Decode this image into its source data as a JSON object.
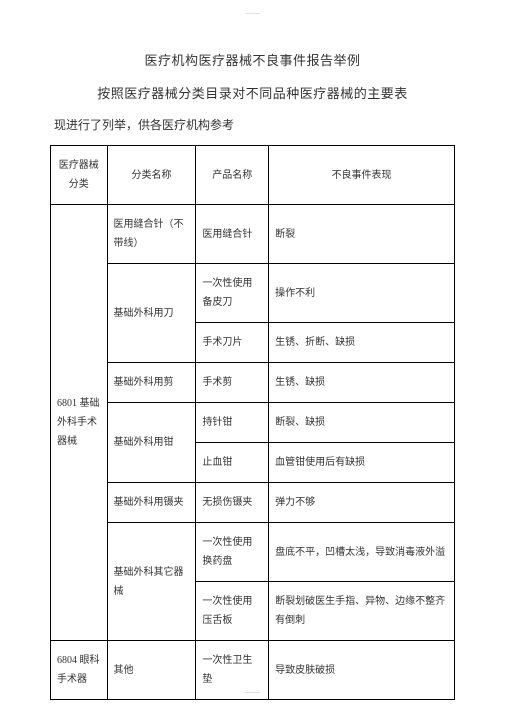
{
  "headerMark": "———",
  "footerMark": "———",
  "title1": "医疗机构医疗器械不良事件报告举例",
  "title2": "按照医疗器械分类目录对不同品种医疗器械的主要表",
  "subtitle": "现进行了列举，供各医疗机构参考",
  "headers": {
    "c1": "医疗器械分类",
    "c2": "分类名称",
    "c3": "产品名称",
    "c4": "不良事件表现"
  },
  "g1": {
    "category": "6801 基础外科手术器械",
    "r1": {
      "name": "医用缝合针（不带线）",
      "product": "医用缝合针",
      "event": "断裂"
    },
    "r2": {
      "name": "基础外科用刀",
      "p1": "一次性使用备皮刀",
      "e1": "操作不利",
      "p2": "手术刀片",
      "e2": "生锈、折断、缺损"
    },
    "r3": {
      "name": "基础外科用剪",
      "product": "手术剪",
      "event": "生锈、缺损"
    },
    "r4": {
      "name": "基础外科用钳",
      "p1": "持针钳",
      "e1": "断裂、缺损",
      "p2": "止血钳",
      "e2": "血管钳使用后有缺损"
    },
    "r5": {
      "name": "基础外科用镊夹",
      "product": "无损伤镊夹",
      "event": "弹力不够"
    },
    "r6": {
      "name": "基础外科其它器械",
      "p1": "一次性使用换药盘",
      "e1": "盘底不平，凹槽太浅，导致消毒液外溢",
      "p2": "一次性使用压舌板",
      "e2": "断裂划破医生手指、异物、边缘不整齐有倒刺"
    }
  },
  "g2": {
    "category": "6804 眼科手术器",
    "r1": {
      "name": "其他",
      "product": "一次性卫生垫",
      "event": "导致皮肤破损"
    }
  }
}
